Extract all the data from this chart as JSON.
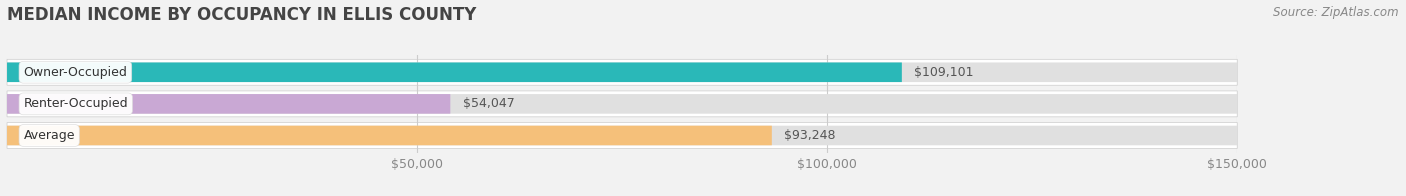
{
  "title": "MEDIAN INCOME BY OCCUPANCY IN ELLIS COUNTY",
  "source": "Source: ZipAtlas.com",
  "categories": [
    "Owner-Occupied",
    "Renter-Occupied",
    "Average"
  ],
  "values": [
    109101,
    54047,
    93248
  ],
  "bar_colors": [
    "#2ab8b8",
    "#c9a8d4",
    "#f5c07a"
  ],
  "bar_labels": [
    "$109,101",
    "$54,047",
    "$93,248"
  ],
  "xlim": [
    0,
    150000
  ],
  "xticks": [
    0,
    50000,
    100000,
    150000
  ],
  "xticklabels": [
    "",
    "$50,000",
    "$100,000",
    "$150,000"
  ],
  "bg_color": "#f2f2f2",
  "bar_bg_color": "#e0e0e0",
  "bar_row_bg": "#ebebeb",
  "title_fontsize": 12,
  "label_fontsize": 9,
  "tick_fontsize": 9
}
